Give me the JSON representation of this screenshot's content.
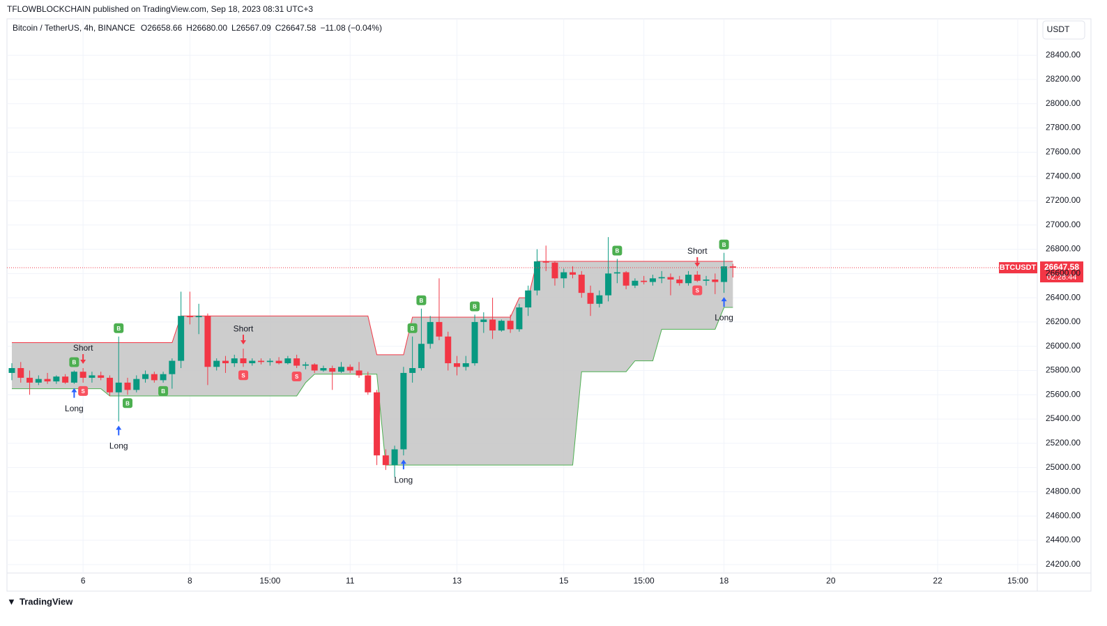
{
  "header": {
    "published": "TFLOWBLOCKCHAIN published on TradingView.com, Sep 18, 2023 08:31 UTC+3",
    "symbol": "Bitcoin / TetherUS, 4h, BINANCE",
    "ohlc": [
      {
        "key": "O",
        "text": "26658.66"
      },
      {
        "key": "H",
        "text": "26680.00"
      },
      {
        "key": "L",
        "text": "26567.09"
      },
      {
        "key": "C",
        "text": "26647.58"
      }
    ],
    "change": "−11.08 (−0.04%)",
    "currency": "USDT",
    "footer": "TradingView"
  },
  "chart_data": {
    "type": "candlestick",
    "categories": [
      null,
      null,
      null,
      null,
      null,
      null,
      null,
      null,
      "6",
      null,
      null,
      null,
      null,
      null,
      null,
      null,
      null,
      null,
      null,
      null,
      "8",
      null,
      null,
      null,
      null,
      null,
      null,
      null,
      null,
      "15:00",
      null,
      null,
      null,
      null,
      null,
      null,
      null,
      null,
      "11",
      null,
      null,
      null,
      null,
      null,
      null,
      null,
      null,
      null,
      null,
      null,
      "13",
      null,
      null,
      null,
      null,
      null,
      null,
      null,
      null,
      null,
      null,
      null,
      "15",
      null,
      null,
      null,
      null,
      null,
      null,
      null,
      null,
      "15:00",
      null,
      null,
      null,
      null,
      null,
      null,
      null,
      null,
      "18",
      null,
      null,
      null,
      null,
      null,
      null,
      null,
      null,
      null,
      null,
      null,
      "20",
      null,
      null,
      null,
      null,
      null,
      null,
      null,
      null,
      null,
      null,
      null,
      "22",
      null,
      null,
      null,
      null,
      null,
      null,
      null,
      null,
      "15:00",
      null,
      null
    ],
    "series": [
      {
        "name": "BTCUSDT",
        "up_color": "#089981",
        "down_color": "#f23645",
        "open": [
          25780,
          25820,
          25740,
          25700,
          25730,
          25710,
          25750,
          25700,
          25790,
          25740,
          25760,
          25740,
          25620,
          25700,
          25640,
          25730,
          25770,
          25720,
          25770,
          25880,
          26250,
          26240,
          26250,
          25830,
          25880,
          25860,
          25900,
          25860,
          25880,
          25870,
          25880,
          25860,
          25900,
          25840,
          25850,
          25800,
          25820,
          25790,
          25830,
          25800,
          25760,
          25620,
          25100,
          25020,
          25150,
          25780,
          25820,
          26020,
          26200,
          26080,
          25860,
          25830,
          25860,
          26200,
          26220,
          26130,
          26210,
          26140,
          26320,
          26460,
          26700,
          26690,
          26560,
          26610,
          26590,
          26440,
          26350,
          26420,
          26600,
          26610,
          26500,
          26540,
          26530,
          26560,
          26570,
          26550,
          26520,
          26590,
          26540,
          26550,
          26530,
          26658.66,
          null,
          null,
          null,
          null,
          null,
          null,
          null,
          null,
          null,
          null,
          null,
          null,
          null,
          null,
          null,
          null,
          null,
          null,
          null,
          null,
          null,
          null,
          null,
          null,
          null,
          null,
          null,
          null,
          null,
          null,
          null,
          null,
          null,
          null
        ],
        "high": [
          25860,
          25870,
          25800,
          25760,
          25780,
          25760,
          25770,
          25800,
          25820,
          25790,
          25790,
          25760,
          26080,
          25740,
          25760,
          25800,
          25790,
          25790,
          25900,
          26450,
          26450,
          26350,
          26270,
          25900,
          25920,
          25930,
          25980,
          25900,
          25900,
          25900,
          25910,
          25920,
          25930,
          25870,
          25860,
          25840,
          25840,
          25870,
          25850,
          25870,
          25790,
          25640,
          25150,
          25180,
          25830,
          26080,
          26310,
          26250,
          26560,
          26120,
          25920,
          25920,
          26260,
          26280,
          26400,
          26220,
          26260,
          26350,
          26500,
          26800,
          26830,
          26700,
          26640,
          26660,
          26620,
          26500,
          26460,
          26900,
          26720,
          26620,
          26560,
          26580,
          26590,
          26620,
          26600,
          26580,
          26620,
          26620,
          26580,
          26600,
          26770,
          26680,
          null,
          null,
          null,
          null,
          null,
          null,
          null,
          null,
          null,
          null,
          null,
          null,
          null,
          null,
          null,
          null,
          null,
          null,
          null,
          null,
          null,
          null,
          null,
          null,
          null,
          null,
          null,
          null,
          null,
          null,
          null,
          null,
          null,
          null
        ],
        "low": [
          25720,
          25700,
          25600,
          25680,
          25690,
          25690,
          25690,
          25690,
          25700,
          25700,
          25720,
          25590,
          25380,
          25600,
          25620,
          25700,
          25700,
          25700,
          25650,
          25820,
          26180,
          26100,
          25680,
          25800,
          25780,
          25830,
          25830,
          25840,
          25850,
          25840,
          25850,
          25850,
          25820,
          25810,
          25780,
          25790,
          25640,
          25780,
          25780,
          25740,
          25600,
          25020,
          24980,
          24920,
          25100,
          25700,
          25800,
          25980,
          26050,
          25800,
          25760,
          25800,
          25840,
          26110,
          26060,
          26120,
          26110,
          26120,
          26250,
          26420,
          26620,
          26500,
          26480,
          26560,
          26400,
          26250,
          26320,
          26370,
          26520,
          26470,
          26480,
          26510,
          26500,
          26520,
          26420,
          26500,
          26500,
          26530,
          26500,
          26430,
          26440,
          26567.09,
          null,
          null,
          null,
          null,
          null,
          null,
          null,
          null,
          null,
          null,
          null,
          null,
          null,
          null,
          null,
          null,
          null,
          null,
          null,
          null,
          null,
          null,
          null,
          null,
          null,
          null,
          null,
          null,
          null,
          null,
          null,
          null,
          null,
          null
        ],
        "close": [
          25820,
          25740,
          25700,
          25730,
          25710,
          25750,
          25700,
          25790,
          25740,
          25760,
          25740,
          25620,
          25700,
          25640,
          25730,
          25770,
          25720,
          25770,
          25880,
          26250,
          26240,
          26250,
          25830,
          25880,
          25860,
          25900,
          25860,
          25880,
          25870,
          25880,
          25860,
          25900,
          25840,
          25850,
          25800,
          25820,
          25790,
          25830,
          25800,
          25760,
          25620,
          25100,
          25020,
          25150,
          25780,
          25820,
          26020,
          26200,
          26080,
          25860,
          25830,
          25860,
          26200,
          26220,
          26130,
          26210,
          26140,
          26320,
          26460,
          26700,
          26690,
          26560,
          26610,
          26590,
          26440,
          26350,
          26420,
          26600,
          26610,
          26500,
          26540,
          26530,
          26560,
          26570,
          26550,
          26520,
          26590,
          26540,
          26550,
          26530,
          26658.66,
          26647.58,
          null,
          null,
          null,
          null,
          null,
          null,
          null,
          null,
          null,
          null,
          null,
          null,
          null,
          null,
          null,
          null,
          null,
          null,
          null,
          null,
          null,
          null,
          null,
          null,
          null,
          null,
          null,
          null,
          null,
          null,
          null,
          null,
          null,
          null
        ]
      }
    ],
    "band": {
      "fill": "#c8c8c8",
      "upper_color": "#f23645",
      "lower_color": "#4caf50",
      "upper": [
        26030,
        26030,
        26030,
        26030,
        26030,
        26030,
        26030,
        26030,
        26030,
        26030,
        26030,
        26030,
        26030,
        26030,
        26030,
        26030,
        26030,
        26030,
        26030,
        26250,
        26250,
        26250,
        26250,
        26250,
        26250,
        26250,
        26250,
        26250,
        26250,
        26250,
        26250,
        26250,
        26250,
        26250,
        26250,
        26250,
        26250,
        26250,
        26250,
        26250,
        26250,
        25930,
        25930,
        25930,
        25930,
        26240,
        26240,
        26240,
        26240,
        26240,
        26240,
        26240,
        26240,
        26240,
        26240,
        26240,
        26240,
        26400,
        26400,
        26700,
        26700,
        26700,
        26700,
        26700,
        26700,
        26700,
        26700,
        26700,
        26700,
        26700,
        26700,
        26700,
        26700,
        26700,
        26700,
        26700,
        26700,
        26700,
        26700,
        26700,
        26700,
        26700,
        null,
        null,
        null,
        null,
        null,
        null,
        null,
        null,
        null,
        null,
        null,
        null,
        null,
        null,
        null,
        null,
        null,
        null,
        null,
        null,
        null,
        null,
        null,
        null,
        null,
        null,
        null,
        null,
        null,
        null,
        null,
        null,
        null,
        null
      ],
      "lower": [
        25650,
        25650,
        25650,
        25650,
        25650,
        25650,
        25650,
        25650,
        25650,
        25650,
        25650,
        25590,
        25590,
        25590,
        25590,
        25590,
        25590,
        25590,
        25590,
        25590,
        25590,
        25590,
        25590,
        25590,
        25590,
        25590,
        25590,
        25590,
        25590,
        25590,
        25590,
        25590,
        25590,
        25700,
        25770,
        25770,
        25770,
        25770,
        25770,
        25770,
        25770,
        25770,
        25020,
        25020,
        25020,
        25020,
        25020,
        25020,
        25020,
        25020,
        25020,
        25020,
        25020,
        25020,
        25020,
        25020,
        25020,
        25020,
        25020,
        25020,
        25020,
        25020,
        25020,
        25020,
        25790,
        25790,
        25790,
        25790,
        25790,
        25790,
        25880,
        25880,
        25880,
        26140,
        26140,
        26140,
        26140,
        26140,
        26140,
        26140,
        26320,
        26320,
        null,
        null,
        null,
        null,
        null,
        null,
        null,
        null,
        null,
        null,
        null,
        null,
        null,
        null,
        null,
        null,
        null,
        null,
        null,
        null,
        null,
        null,
        null,
        null,
        null,
        null,
        null,
        null,
        null,
        null,
        null,
        null,
        null,
        null
      ]
    },
    "signals": [
      "Short",
      "Long",
      "Long",
      "Short",
      "Long",
      "Short",
      "Long"
    ],
    "badges": [
      "B",
      "S",
      "B",
      "B",
      "B",
      "S",
      "S",
      "B",
      "B",
      "B",
      "B",
      "S",
      "B"
    ],
    "countdown": "02:28:44",
    "ylim": [
      24130,
      28700
    ],
    "yticks": [
      {
        "value": 24200,
        "label": "24200.00"
      },
      {
        "value": 24400,
        "label": "24400.00"
      },
      {
        "value": 24600,
        "label": "24600.00"
      },
      {
        "value": 24800,
        "label": "24800.00"
      },
      {
        "value": 25000,
        "label": "25000.00"
      },
      {
        "value": 25200,
        "label": "25200.00"
      },
      {
        "value": 25400,
        "label": "25400.00"
      },
      {
        "value": 25600,
        "label": "25600.00"
      },
      {
        "value": 25800,
        "label": "25800.00"
      },
      {
        "value": 26000,
        "label": "26000.00"
      },
      {
        "value": 26200,
        "label": "26200.00"
      },
      {
        "value": 26400,
        "label": "26400.00"
      },
      {
        "value": 26600,
        "label": "26600.00"
      },
      {
        "value": 26800,
        "label": "26800.00"
      },
      {
        "value": 27000,
        "label": "27000.00"
      },
      {
        "value": 27200,
        "label": "27200.00"
      },
      {
        "value": 27400,
        "label": "27400.00"
      },
      {
        "value": 27600,
        "label": "27600.00"
      },
      {
        "value": 27800,
        "label": "27800.00"
      },
      {
        "value": 28000,
        "label": "28000.00"
      },
      {
        "value": 28200,
        "label": "28200.00"
      },
      {
        "value": 28400,
        "label": "28400.00"
      }
    ],
    "grid": true
  }
}
